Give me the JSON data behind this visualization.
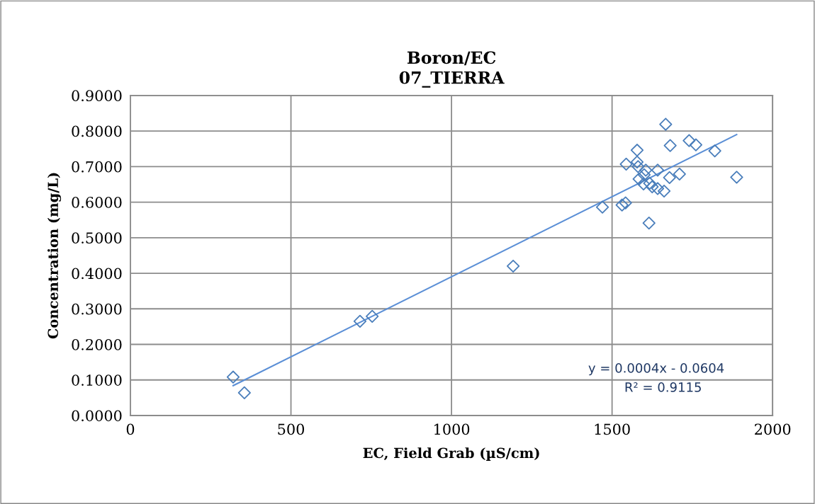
{
  "chart_data": {
    "type": "scatter",
    "title": "Boron/EC\n07_TIERRA",
    "xlabel": "EC, Field Grab (µS/cm)",
    "ylabel": "Concentration (mg/L)",
    "xlim": [
      0,
      2000
    ],
    "xticks": [
      0,
      500,
      1000,
      1500,
      2000
    ],
    "ylim": [
      0,
      0.9
    ],
    "yticks": [
      {
        "value": 0,
        "label": "0.0000"
      },
      {
        "value": 0.1,
        "label": "0.1000"
      },
      {
        "value": 0.2,
        "label": "0.2000"
      },
      {
        "value": 0.3,
        "label": "0.3000"
      },
      {
        "value": 0.4,
        "label": "0.4000"
      },
      {
        "value": 0.5,
        "label": "0.5000"
      },
      {
        "value": 0.6,
        "label": "0.6000"
      },
      {
        "value": 0.7,
        "label": "0.7000"
      },
      {
        "value": 0.8,
        "label": "0.8000"
      },
      {
        "value": 0.9,
        "label": "0.9000"
      }
    ],
    "grid": true,
    "series": [
      {
        "color": "#4a7ebb",
        "marker": "diamond",
        "x": [
          320,
          355,
          715,
          753,
          1192,
          1667,
          1681,
          1740,
          1761,
          1820,
          1578,
          1544,
          1578,
          1581,
          1605,
          1642,
          1600,
          1584,
          1679,
          1710,
          1598,
          1617,
          1625,
          1642,
          1662,
          1470,
          1531,
          1542,
          1615,
          1888
        ],
        "values": [
          0.108,
          0.064,
          0.265,
          0.279,
          0.42,
          0.819,
          0.759,
          0.773,
          0.761,
          0.744,
          0.746,
          0.707,
          0.713,
          0.7,
          0.69,
          0.69,
          0.677,
          0.665,
          0.669,
          0.679,
          0.651,
          0.653,
          0.643,
          0.638,
          0.631,
          0.586,
          0.592,
          0.598,
          0.541,
          0.67
        ]
      },
      {
        "type": "line",
        "marker": "none",
        "color": "#5b8fd6",
        "x": [
          320,
          1888
        ],
        "values": [
          0.084,
          0.79
        ]
      }
    ],
    "annotations": [
      "y = 0.0004x - 0.0604",
      "R² = 0.9115"
    ]
  }
}
